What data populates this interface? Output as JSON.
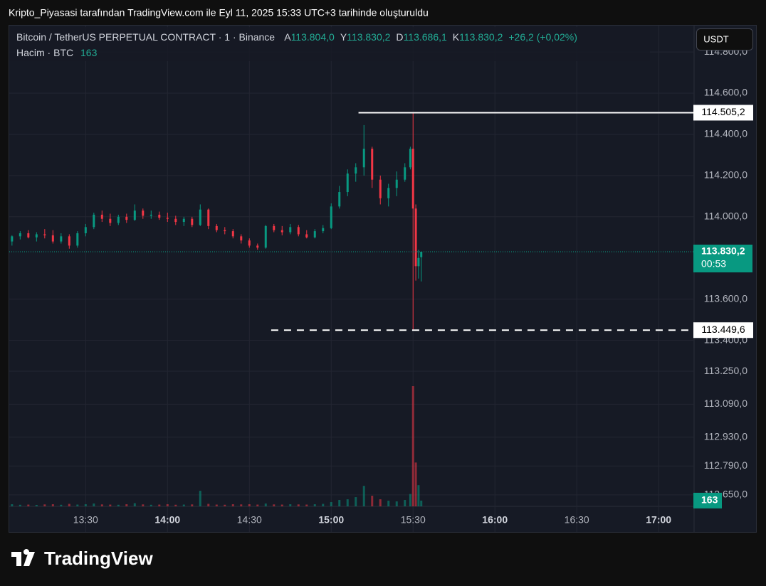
{
  "page_title": "Kripto_Piyasasi tarafından TradingView.com ile Eyl 11, 2025 15:33 UTC+3 tarihinde oluşturuldu",
  "brand": "TradingView",
  "currency_button": "USDT",
  "chart_data": {
    "type": "candlestick",
    "header": {
      "symbol": "Bitcoin / TetherUS PERPETUAL CONTRACT · 1 · Binance",
      "ohlc": [
        {
          "key": "A",
          "value": "113.804,0"
        },
        {
          "key": "Y",
          "value": "113.830,2"
        },
        {
          "key": "D",
          "value": "113.686,1"
        },
        {
          "key": "K",
          "value": "113.830,2"
        }
      ],
      "change": "+26,2 (+0,02%)",
      "volume_title": "Hacim · BTC",
      "volume_value": "163"
    },
    "x": [
      "13:03",
      "13:06",
      "13:09",
      "13:12",
      "13:15",
      "13:18",
      "13:21",
      "13:24",
      "13:27",
      "13:30",
      "13:33",
      "13:36",
      "13:39",
      "13:42",
      "13:45",
      "13:48",
      "13:51",
      "13:54",
      "13:57",
      "14:00",
      "14:03",
      "14:06",
      "14:09",
      "14:12",
      "14:15",
      "14:18",
      "14:21",
      "14:24",
      "14:27",
      "14:30",
      "14:33",
      "14:36",
      "14:39",
      "14:42",
      "14:45",
      "14:48",
      "14:51",
      "14:54",
      "14:57",
      "15:00",
      "15:03",
      "15:06",
      "15:09",
      "15:12",
      "15:15",
      "15:18",
      "15:21",
      "15:24",
      "15:27",
      "15:29",
      "15:30",
      "15:31",
      "15:32",
      "15:33"
    ],
    "open": [
      113880,
      113905,
      113920,
      113900,
      113915,
      113910,
      113880,
      113905,
      113860,
      113920,
      113950,
      114010,
      113990,
      113970,
      114000,
      113985,
      114030,
      114005,
      114010,
      113995,
      113990,
      113975,
      113990,
      113960,
      114035,
      113955,
      113935,
      113930,
      113905,
      113885,
      113860,
      113850,
      113955,
      113935,
      113925,
      113950,
      113915,
      113900,
      113930,
      113945,
      114050,
      114120,
      114210,
      114240,
      114330,
      114180,
      114090,
      114140,
      114180,
      114240,
      114330,
      114040,
      113760,
      113804.0
    ],
    "high": [
      113910,
      113930,
      113935,
      113925,
      113940,
      113935,
      113920,
      113915,
      113930,
      113965,
      114020,
      114030,
      114015,
      114010,
      114015,
      114060,
      114040,
      114030,
      114025,
      114020,
      114005,
      114000,
      114000,
      114060,
      114040,
      113965,
      113950,
      113940,
      113915,
      113895,
      113870,
      113960,
      113965,
      113955,
      113965,
      113960,
      113935,
      113940,
      113960,
      114065,
      114150,
      114230,
      114260,
      114445,
      114340,
      114200,
      114160,
      114220,
      114260,
      114340,
      114505.2,
      114060,
      113840,
      113830.2
    ],
    "low": [
      113860,
      113890,
      113895,
      113880,
      113895,
      113870,
      113870,
      113845,
      113850,
      113905,
      113940,
      113975,
      113955,
      113960,
      113970,
      113980,
      113990,
      113990,
      113985,
      113975,
      113960,
      113955,
      113950,
      113955,
      113940,
      113925,
      113915,
      113895,
      113870,
      113850,
      113840,
      113845,
      113925,
      113910,
      113915,
      113905,
      113895,
      113895,
      113920,
      113940,
      114040,
      114100,
      114170,
      114200,
      114140,
      114060,
      114050,
      114100,
      114170,
      114230,
      113449.6,
      113690,
      113700,
      113686.1
    ],
    "close": [
      113905,
      113920,
      113900,
      113915,
      113910,
      113880,
      113905,
      113860,
      113920,
      113950,
      114010,
      113990,
      113970,
      114000,
      113985,
      114030,
      114005,
      114010,
      113995,
      113990,
      113975,
      113990,
      113960,
      114035,
      113955,
      113935,
      113930,
      113905,
      113885,
      113860,
      113850,
      113955,
      113935,
      113925,
      113950,
      113915,
      113900,
      113930,
      113945,
      114050,
      114120,
      114210,
      114240,
      114330,
      114180,
      114090,
      114140,
      114180,
      114240,
      114330,
      114040,
      113760,
      113800,
      113830.2
    ],
    "volume": [
      60,
      45,
      50,
      40,
      55,
      60,
      45,
      70,
      50,
      60,
      80,
      55,
      50,
      45,
      60,
      90,
      55,
      45,
      50,
      60,
      45,
      50,
      55,
      440,
      70,
      50,
      45,
      60,
      55,
      60,
      50,
      80,
      55,
      50,
      60,
      55,
      50,
      60,
      70,
      120,
      180,
      200,
      260,
      580,
      300,
      200,
      160,
      140,
      180,
      350,
      3400,
      1240,
      600,
      163
    ],
    "up_color": "#089981",
    "down_color": "#f23645",
    "last_price_label": "113.830,2",
    "countdown": "00:53",
    "volume_label": "163",
    "levels": [
      {
        "value": 114505.2,
        "label": "114.505,2",
        "style": "solid",
        "from": "15:10"
      },
      {
        "value": 113449.6,
        "label": "113.449,6",
        "style": "dashed",
        "from": "14:38"
      }
    ],
    "xlim": [
      "13:02",
      "17:13"
    ],
    "xticks": [
      "13:30",
      "14:00",
      "14:30",
      "15:00",
      "15:30",
      "16:00",
      "16:30",
      "17:00"
    ],
    "ylim": [
      112470,
      114928
    ],
    "yticks": [
      {
        "value": 114800,
        "label": "114.800,0"
      },
      {
        "value": 114600,
        "label": "114.600,0"
      },
      {
        "value": 114400,
        "label": "114.400,0"
      },
      {
        "value": 114200,
        "label": "114.200,0"
      },
      {
        "value": 114000,
        "label": "114.000,0"
      },
      {
        "value": 113600,
        "label": "113.600,0"
      },
      {
        "value": 113400,
        "label": "113.400,0"
      },
      {
        "value": 113250,
        "label": "113.250,0"
      },
      {
        "value": 113090,
        "label": "113.090,0"
      },
      {
        "value": 112930,
        "label": "112.930,0"
      },
      {
        "value": 112790,
        "label": "112.790,0"
      },
      {
        "value": 112650,
        "label": "112.650,0"
      }
    ],
    "vlim": [
      0,
      13600
    ],
    "grid": true
  }
}
